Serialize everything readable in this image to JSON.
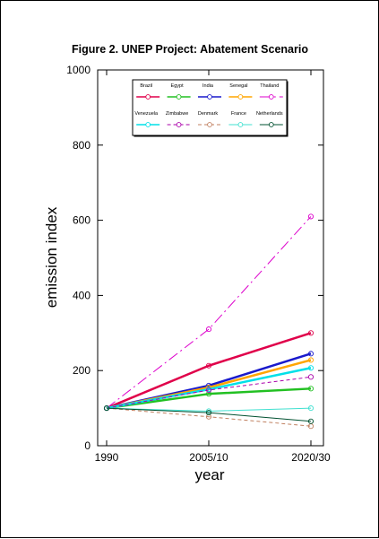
{
  "chart_data": {
    "type": "line",
    "title": "Figure 2. UNEP Project: Abatement Scenario",
    "xlabel": "year",
    "ylabel": "emission index",
    "categories": [
      "1990",
      "2005/10",
      "2020/30"
    ],
    "ylim": [
      0,
      1000
    ],
    "yticks": [
      0,
      200,
      400,
      600,
      800,
      1000
    ],
    "grid": false,
    "legend_position": "top",
    "series": [
      {
        "name": "Brazil",
        "values": [
          100,
          213,
          300
        ],
        "color": "#e0004a",
        "style": "solid",
        "width": 2.5
      },
      {
        "name": "Egypt",
        "values": [
          100,
          138,
          152
        ],
        "color": "#22c022",
        "style": "solid",
        "width": 2.5
      },
      {
        "name": "India",
        "values": [
          100,
          160,
          245
        ],
        "color": "#1a1acc",
        "style": "solid",
        "width": 2.5
      },
      {
        "name": "Senegal",
        "values": [
          100,
          155,
          228
        ],
        "color": "#ffa500",
        "style": "solid",
        "width": 2.5
      },
      {
        "name": "Thailand",
        "values": [
          100,
          310,
          610
        ],
        "color": "#dd00cc",
        "style": "dashdot",
        "width": 1
      },
      {
        "name": "Venezuela",
        "values": [
          100,
          150,
          207
        ],
        "color": "#00e0e8",
        "style": "solid",
        "width": 2.5
      },
      {
        "name": "Zimbabwe",
        "values": [
          100,
          148,
          183
        ],
        "color": "#aa00aa",
        "style": "dashed",
        "width": 1
      },
      {
        "name": "Denmark",
        "values": [
          100,
          77,
          52
        ],
        "color": "#c08060",
        "style": "dashed",
        "width": 1
      },
      {
        "name": "France",
        "values": [
          100,
          92,
          100
        ],
        "color": "#40e0d0",
        "style": "solid",
        "width": 1
      },
      {
        "name": "Netherlands",
        "values": [
          100,
          88,
          65
        ],
        "color": "#005030",
        "style": "solid",
        "width": 1
      }
    ]
  }
}
